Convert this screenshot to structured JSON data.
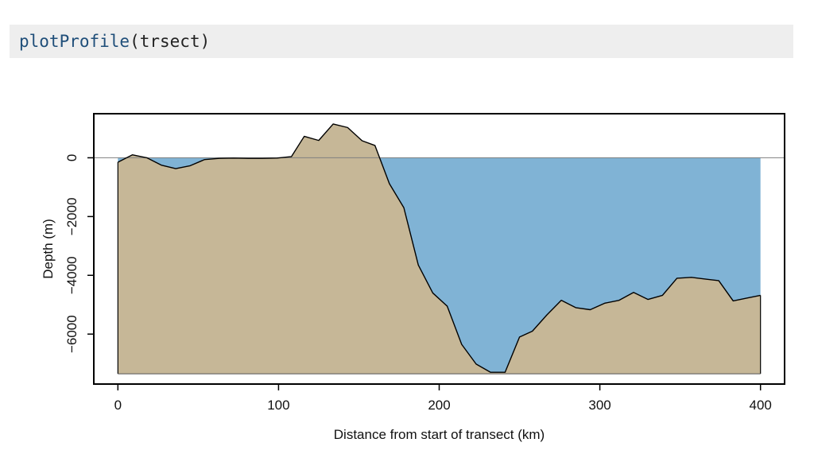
{
  "code": {
    "function": "plotProfile",
    "open_paren": "(",
    "argument": "trsect",
    "close_paren": ")"
  },
  "chart_data": {
    "type": "area",
    "xlabel": "Distance from start of transect (km)",
    "ylabel": "Depth (m)",
    "xlim": [
      -15,
      415
    ],
    "ylim": [
      -7700,
      1500
    ],
    "x_ticks": [
      0,
      100,
      200,
      300,
      400
    ],
    "x_tick_labels": [
      "0",
      "100",
      "200",
      "300",
      "400"
    ],
    "y_ticks": [
      0,
      -2000,
      -4000,
      -6000
    ],
    "y_tick_labels": [
      "0",
      "−2000",
      "−4000",
      "−6000"
    ],
    "baseline_depth": -7350,
    "sea_level": 0,
    "grid": false,
    "colors": {
      "water": "#80b3d5",
      "land": "#c6b797",
      "outline": "#000000",
      "sea_line": "#7f7f7f"
    },
    "profile": [
      {
        "x": 0,
        "y": -150
      },
      {
        "x": 9,
        "y": 100
      },
      {
        "x": 18,
        "y": 0
      },
      {
        "x": 27,
        "y": -250
      },
      {
        "x": 36,
        "y": -370
      },
      {
        "x": 45,
        "y": -270
      },
      {
        "x": 54,
        "y": -60
      },
      {
        "x": 63,
        "y": -20
      },
      {
        "x": 72,
        "y": -10
      },
      {
        "x": 81,
        "y": -20
      },
      {
        "x": 90,
        "y": -20
      },
      {
        "x": 99,
        "y": -10
      },
      {
        "x": 108,
        "y": 40
      },
      {
        "x": 116,
        "y": 730
      },
      {
        "x": 125,
        "y": 590
      },
      {
        "x": 134,
        "y": 1150
      },
      {
        "x": 143,
        "y": 1030
      },
      {
        "x": 152,
        "y": 580
      },
      {
        "x": 160,
        "y": 420
      },
      {
        "x": 169,
        "y": -880
      },
      {
        "x": 178,
        "y": -1700
      },
      {
        "x": 187,
        "y": -3650
      },
      {
        "x": 196,
        "y": -4600
      },
      {
        "x": 205,
        "y": -5050
      },
      {
        "x": 214,
        "y": -6350
      },
      {
        "x": 223,
        "y": -7020
      },
      {
        "x": 232,
        "y": -7300
      },
      {
        "x": 241,
        "y": -7300
      },
      {
        "x": 250,
        "y": -6100
      },
      {
        "x": 258,
        "y": -5900
      },
      {
        "x": 267,
        "y": -5350
      },
      {
        "x": 276,
        "y": -4850
      },
      {
        "x": 285,
        "y": -5100
      },
      {
        "x": 294,
        "y": -5170
      },
      {
        "x": 303,
        "y": -4950
      },
      {
        "x": 312,
        "y": -4850
      },
      {
        "x": 321,
        "y": -4580
      },
      {
        "x": 330,
        "y": -4820
      },
      {
        "x": 339,
        "y": -4680
      },
      {
        "x": 348,
        "y": -4100
      },
      {
        "x": 357,
        "y": -4070
      },
      {
        "x": 366,
        "y": -4130
      },
      {
        "x": 374,
        "y": -4180
      },
      {
        "x": 383,
        "y": -4870
      },
      {
        "x": 392,
        "y": -4770
      },
      {
        "x": 400,
        "y": -4680
      }
    ]
  }
}
